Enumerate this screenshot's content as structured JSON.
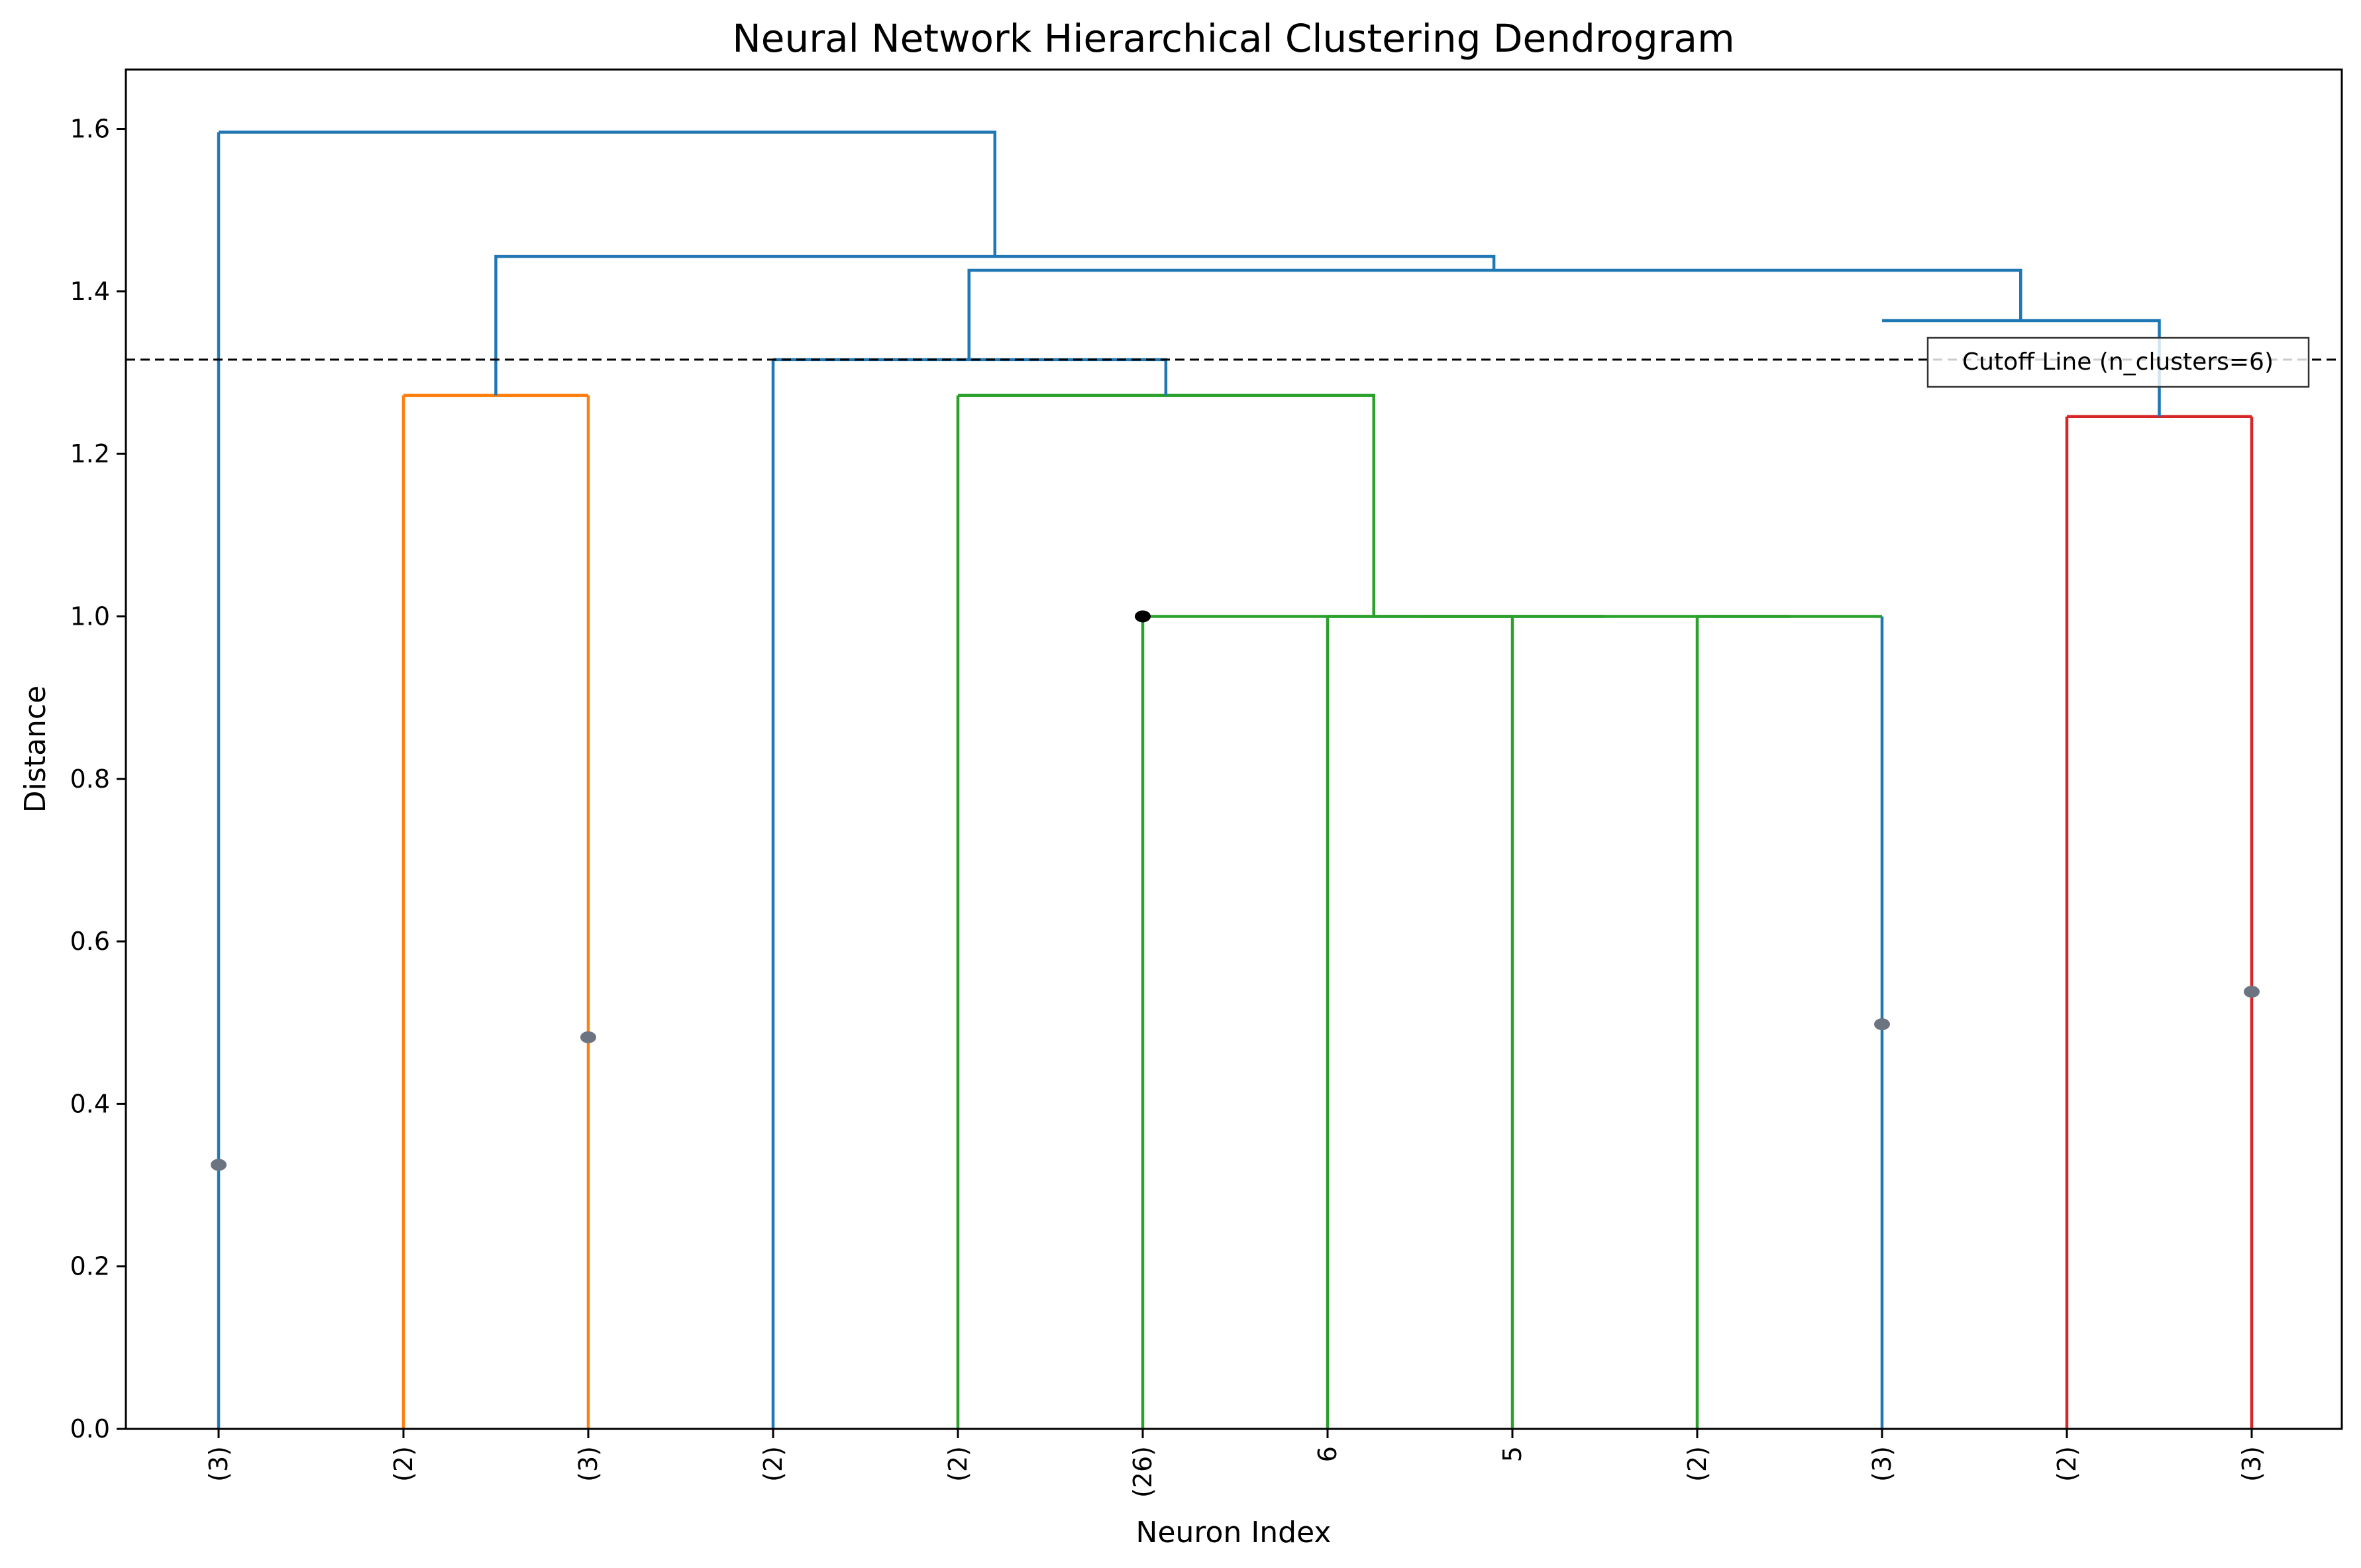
{
  "chart_data": {
    "type": "dendrogram",
    "title": "Neural Network Hierarchical Clustering Dendrogram",
    "xlabel": "Neuron Index",
    "ylabel": "Distance",
    "ylim": [
      0,
      1.673
    ],
    "yticks": [
      0.0,
      0.2,
      0.4,
      0.6,
      0.8,
      1.0,
      1.2,
      1.4,
      1.6
    ],
    "ytick_labels": [
      "0.0",
      "0.2",
      "0.4",
      "0.6",
      "0.8",
      "1.0",
      "1.2",
      "1.4",
      "1.6"
    ],
    "leaves": [
      "(3)",
      "(2)",
      "(3)",
      "(2)",
      "(2)",
      "(26)",
      "6",
      "5",
      "(2)",
      "(3)",
      "(2)",
      "(3)"
    ],
    "links": [
      {
        "left": 1,
        "right": 2,
        "height": 1.272,
        "color": "#ff7f0e"
      },
      {
        "left": 6,
        "right": 7,
        "height": 1.0,
        "color": "#2ca02c"
      },
      {
        "left": 8,
        "right": 9,
        "height": 1.0,
        "color": "#2ca02c"
      },
      {
        "left": 6.5,
        "right": 8.5,
        "height": 1.0,
        "color": "#2ca02c"
      },
      {
        "left": 5,
        "right": 7.5,
        "height": 1.0,
        "color": "#2ca02c"
      },
      {
        "left": 4,
        "right": 6.25,
        "height": 1.272,
        "color": "#2ca02c"
      },
      {
        "left": 3,
        "right": 5.125,
        "height": 1.316,
        "color": "#1f77b4"
      },
      {
        "left": 10,
        "right": 11,
        "height": 1.246,
        "color": "#d62728"
      },
      {
        "left": 9,
        "right": 10.5,
        "height": 1.364,
        "color": "#1f77b4"
      },
      {
        "left": 4.06,
        "right": 9.75,
        "height": 1.426,
        "color": "#1f77b4"
      },
      {
        "left": 1.5,
        "right": 6.9,
        "height": 1.443,
        "color": "#1f77b4"
      },
      {
        "left": 0,
        "right": 4.2,
        "height": 1.596,
        "color": "#1f77b4"
      }
    ],
    "leaf_colors": [
      "#1f77b4",
      "#ff7f0e",
      "#ff7f0e",
      "#1f77b4",
      "#2ca02c",
      "#2ca02c",
      "#2ca02c",
      "#2ca02c",
      "#2ca02c",
      "#1f77b4",
      "#d62728",
      "#d62728"
    ],
    "markers": [
      {
        "leaf": 0,
        "y": 0.325,
        "color": "#6b7480"
      },
      {
        "leaf": 2,
        "y": 0.482,
        "color": "#6b7480"
      },
      {
        "leaf": 5,
        "y": 1.0,
        "color": "#000000"
      },
      {
        "leaf": 9,
        "y": 0.498,
        "color": "#6b7480"
      },
      {
        "leaf": 11,
        "y": 0.538,
        "color": "#6b7480"
      }
    ],
    "cutoff": {
      "y": 1.316,
      "label": "Cutoff Line (n_clusters=6)",
      "color": "#000000"
    },
    "grid": false
  }
}
